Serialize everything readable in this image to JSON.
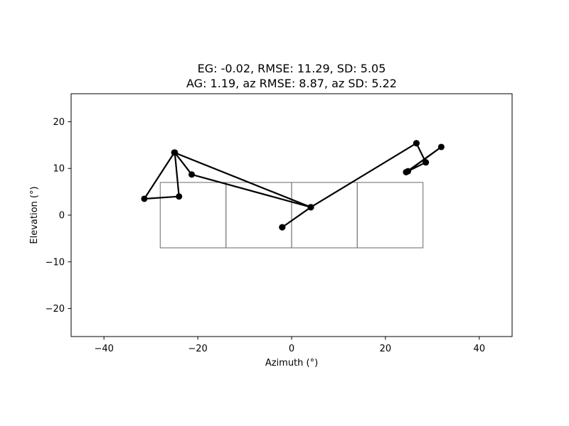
{
  "chart_data": {
    "type": "line",
    "title_line1": "EG: -0.02, RMSE: 11.29, SD: 5.05",
    "title_line2": "AG: 1.19, az RMSE: 8.87, az SD: 5.22",
    "xlabel": "Azimuth (°)",
    "ylabel": "Elevation (°)",
    "xlim": [
      -47,
      47
    ],
    "ylim": [
      -26,
      26
    ],
    "xticks": [
      -40,
      -20,
      0,
      20,
      40
    ],
    "yticks": [
      -20,
      -10,
      0,
      10,
      20
    ],
    "xtick_labels": [
      "−40",
      "−20",
      "0",
      "20",
      "40"
    ],
    "ytick_labels": [
      "−20",
      "−10",
      "0",
      "10",
      "20"
    ],
    "grid": false,
    "series": [
      {
        "color": "#000000",
        "x": [
          -2,
          4.1,
          -21.3,
          -24.9,
          -24,
          -31.4,
          -25,
          4.1,
          26.6,
          28.6,
          24.4,
          31.9,
          24.8,
          28.6,
          26.6,
          4.1,
          -2
        ],
        "y": [
          -2.6,
          1.7,
          8.7,
          13.4,
          4,
          3.5,
          13.4,
          1.7,
          15.4,
          11.3,
          9.2,
          14.6,
          9.4,
          11.3,
          15.4,
          1.7,
          -2.6
        ]
      }
    ],
    "grid_rects": [
      {
        "x0": -28,
        "x1": -14,
        "y0": -7,
        "y1": 7
      },
      {
        "x0": -14,
        "x1": 0,
        "y0": -7,
        "y1": 7
      },
      {
        "x0": 0,
        "x1": 14,
        "y0": -7,
        "y1": 7
      },
      {
        "x0": 14,
        "x1": 28,
        "y0": -7,
        "y1": 7
      }
    ]
  }
}
